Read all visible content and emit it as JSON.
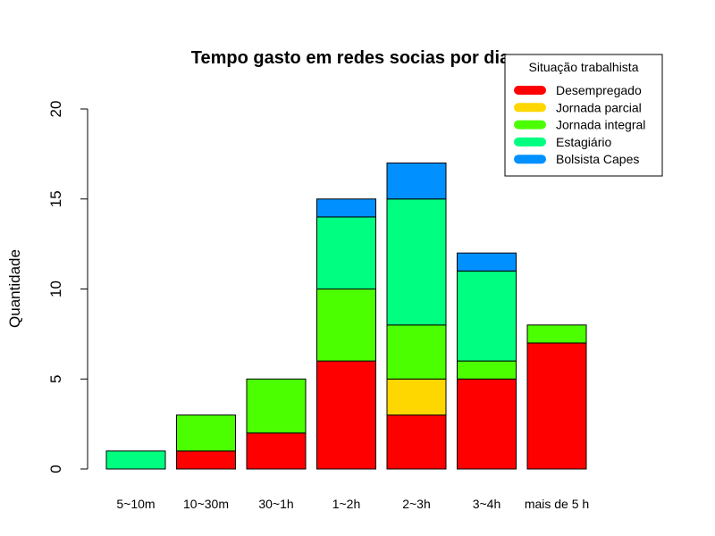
{
  "chart_data": {
    "type": "bar",
    "stacked": true,
    "title": "Tempo gasto em redes socias por dia",
    "xlabel": "",
    "ylabel": "Quantidade",
    "ylim": [
      0,
      20
    ],
    "yticks": [
      "0",
      "5",
      "10",
      "15",
      "20"
    ],
    "categories": [
      "5~10m",
      "10~30m",
      "30~1h",
      "1~2h",
      "2~3h",
      "3~4h",
      "mais de 5 h"
    ],
    "series": [
      {
        "name": "Desempregado",
        "color": "#ff0000",
        "values": [
          0,
          1,
          2,
          6,
          3,
          5,
          7
        ]
      },
      {
        "name": "Jornada parcial",
        "color": "#ffd700",
        "values": [
          0,
          0,
          0,
          0,
          2,
          0,
          0
        ]
      },
      {
        "name": "Jornada integral",
        "color": "#4cff00",
        "values": [
          0,
          2,
          3,
          4,
          3,
          1,
          1
        ]
      },
      {
        "name": "Estagiário",
        "color": "#00ff80",
        "values": [
          1,
          0,
          0,
          4,
          7,
          5,
          0
        ]
      },
      {
        "name": "Bolsista Capes",
        "color": "#0090ff",
        "values": [
          0,
          0,
          0,
          1,
          2,
          1,
          0
        ]
      }
    ],
    "legend": {
      "title": "Situação trabalhista",
      "position": "top-right"
    },
    "grid": false
  }
}
